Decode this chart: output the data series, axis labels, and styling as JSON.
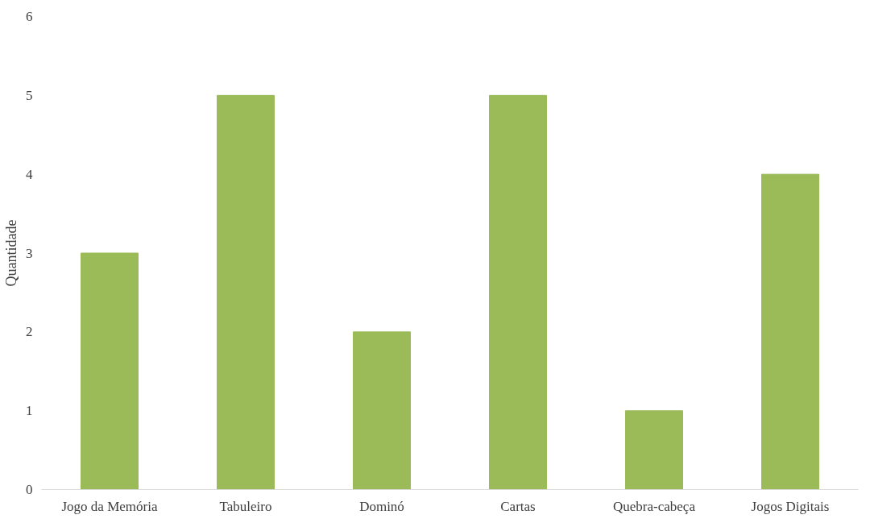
{
  "chart_data": {
    "type": "bar",
    "ylabel": "Quantidade",
    "categories": [
      "Jogo da Memória",
      "Tabuleiro",
      "Dominó",
      "Cartas",
      "Quebra-cabeça",
      "Jogos Digitais"
    ],
    "values": [
      3,
      5,
      2,
      5,
      1,
      4
    ],
    "color": "#9bbb59",
    "ylim": [
      0,
      6
    ],
    "yticks": [
      0,
      1,
      2,
      3,
      4,
      5,
      6
    ],
    "grid": false
  }
}
